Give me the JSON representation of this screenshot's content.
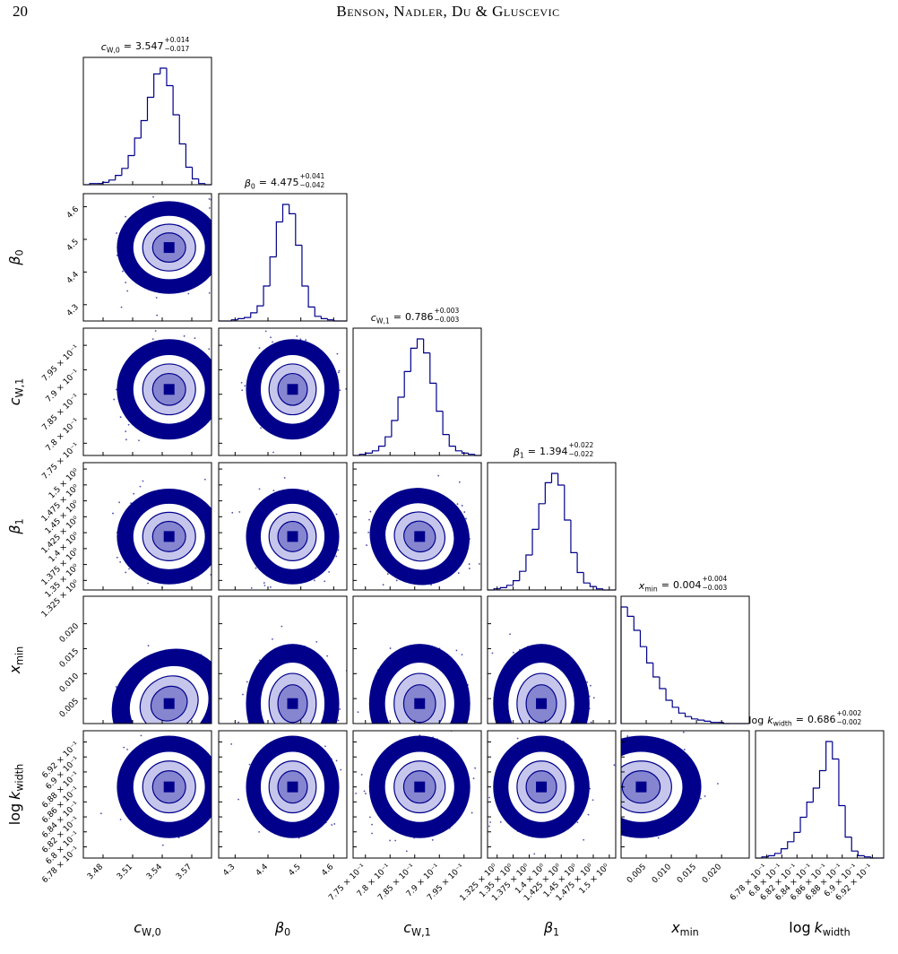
{
  "header": {
    "page": "20",
    "running_title": "Benson, Nadler, Du & Gluscevic"
  },
  "figure": {
    "color": "#00008b",
    "parameters": [
      {
        "symbol": "c",
        "sub": "W,0",
        "relation": "=",
        "median": 3.547,
        "err_plus": {
          "value": 0.014,
          "label": "+0.014"
        },
        "err_minus": {
          "value": -0.017,
          "label": "−0.017"
        },
        "lim": [
          3.46,
          3.59
        ],
        "ticks": [
          3.48,
          3.51,
          3.54,
          3.57
        ],
        "counts": [
          0,
          1,
          1,
          2,
          4,
          8,
          14,
          25,
          40,
          55,
          75,
          95,
          100,
          85,
          60,
          35,
          15,
          5,
          1,
          0
        ]
      },
      {
        "symbol": "β",
        "sub": "0",
        "relation": "=",
        "median": 4.475,
        "err_plus": {
          "value": 0.041,
          "label": "+0.041"
        },
        "err_minus": {
          "value": -0.042,
          "label": "−0.042"
        },
        "lim": [
          4.25,
          4.64
        ],
        "ticks": [
          4.3,
          4.4,
          4.5,
          4.6
        ],
        "counts": [
          0,
          0,
          1,
          2,
          3,
          7,
          13,
          30,
          55,
          85,
          100,
          92,
          65,
          30,
          12,
          4,
          2,
          1,
          0,
          0
        ]
      },
      {
        "symbol": "c",
        "sub": "W,1",
        "relation": "=",
        "median": 0.786,
        "err_plus": {
          "value": 0.003,
          "label": "+0.003"
        },
        "err_minus": {
          "value": -0.003,
          "label": "−0.003"
        },
        "lim": [
          0.7725,
          0.7985
        ],
        "ticks": [
          {
            "value": 0.775,
            "label": "7.75 × 10⁻¹"
          },
          {
            "value": 0.78,
            "label": "7.8 × 10⁻¹"
          },
          {
            "value": 0.785,
            "label": "7.85 × 10⁻¹"
          },
          {
            "value": 0.79,
            "label": "7.9 × 10⁻¹"
          },
          {
            "value": 0.795,
            "label": "7.95 × 10⁻¹"
          }
        ],
        "counts": [
          0,
          1,
          2,
          4,
          8,
          16,
          30,
          50,
          72,
          92,
          100,
          88,
          62,
          38,
          18,
          8,
          4,
          2,
          1,
          0
        ]
      },
      {
        "symbol": "β",
        "sub": "1",
        "relation": "=",
        "median": 1.394,
        "err_plus": {
          "value": 0.022,
          "label": "+0.022"
        },
        "err_minus": {
          "value": -0.022,
          "label": "−0.022"
        },
        "lim": [
          1.31,
          1.51
        ],
        "ticks": [
          {
            "value": 1.325,
            "label": "1.325 × 10⁰"
          },
          {
            "value": 1.35,
            "label": "1.35 × 10⁰"
          },
          {
            "value": 1.375,
            "label": "1.375 × 10⁰"
          },
          {
            "value": 1.4,
            "label": "1.4 × 10⁰"
          },
          {
            "value": 1.425,
            "label": "1.425 × 10⁰"
          },
          {
            "value": 1.45,
            "label": "1.45 × 10⁰"
          },
          {
            "value": 1.475,
            "label": "1.475 × 10⁰"
          },
          {
            "value": 1.5,
            "label": "1.5 × 10⁰"
          }
        ],
        "counts": [
          0,
          1,
          2,
          4,
          8,
          16,
          30,
          52,
          74,
          92,
          100,
          90,
          60,
          32,
          15,
          6,
          3,
          1,
          0,
          0
        ]
      },
      {
        "symbol": "x",
        "sub": "min",
        "relation": "=",
        "median": 0.004,
        "err_plus": {
          "value": 0.004,
          "label": "+0.004"
        },
        "err_minus": {
          "value": -0.003,
          "label": "−0.003"
        },
        "lim": [
          0,
          0.0255
        ],
        "ticks": [
          0.005,
          {
            "value": 0.01,
            "label": "0.010"
          },
          0.015,
          {
            "value": 0.02,
            "label": "0.020"
          }
        ],
        "counts": [
          100,
          92,
          80,
          66,
          52,
          40,
          30,
          20,
          14,
          9,
          6,
          4,
          3,
          2,
          1,
          1,
          0,
          0,
          0,
          0
        ]
      },
      {
        "prefix": "log",
        "symbol": "k",
        "sub": "width",
        "relation": "=",
        "median": 0.686,
        "err_plus": {
          "value": 0.002,
          "label": "+0.002"
        },
        "err_minus": {
          "value": -0.002,
          "label": "−0.002"
        },
        "lim": [
          0.6765,
          0.6935
        ],
        "ticks": [
          {
            "value": 0.678,
            "label": "6.78 × 10⁻¹"
          },
          {
            "value": 0.68,
            "label": "6.8 × 10⁻¹"
          },
          {
            "value": 0.682,
            "label": "6.82 × 10⁻¹"
          },
          {
            "value": 0.684,
            "label": "6.84 × 10⁻¹"
          },
          {
            "value": 0.686,
            "label": "6.86 × 10⁻¹"
          },
          {
            "value": 0.688,
            "label": "6.88 × 10⁻¹"
          },
          {
            "value": 0.69,
            "label": "6.9 × 10⁻¹"
          },
          {
            "value": 0.692,
            "label": "6.92 × 10⁻¹"
          }
        ],
        "counts": [
          0,
          1,
          2,
          4,
          8,
          14,
          22,
          35,
          48,
          60,
          75,
          100,
          85,
          45,
          18,
          6,
          2,
          1,
          0,
          0
        ]
      }
    ]
  }
}
